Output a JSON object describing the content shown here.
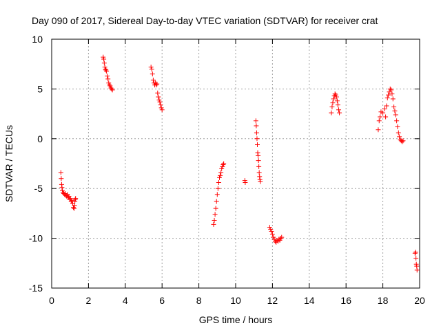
{
  "chart_data": {
    "type": "scatter",
    "title": "Day 090 of 2017, Sidereal Day-to-day VTEC variation (SDTVAR) for receiver crat",
    "xlabel": "GPS time / hours",
    "ylabel": "SDTVAR / TECUs",
    "xlim": [
      0,
      20
    ],
    "ylim": [
      -15,
      10
    ],
    "xticks": [
      0,
      2,
      4,
      6,
      8,
      10,
      12,
      14,
      16,
      18,
      20
    ],
    "yticks": [
      -15,
      -10,
      -5,
      0,
      5,
      10
    ],
    "grid": true,
    "marker": "+",
    "color": "#ff0000",
    "series": [
      {
        "name": "SDTVAR",
        "points": [
          [
            0.5,
            -3.4
          ],
          [
            0.52,
            -4.0
          ],
          [
            0.54,
            -4.6
          ],
          [
            0.56,
            -4.9
          ],
          [
            0.58,
            -5.2
          ],
          [
            0.62,
            -5.4
          ],
          [
            0.66,
            -5.5
          ],
          [
            0.7,
            -5.6
          ],
          [
            0.74,
            -5.5
          ],
          [
            0.78,
            -5.7
          ],
          [
            0.82,
            -5.8
          ],
          [
            0.86,
            -5.6
          ],
          [
            0.9,
            -5.9
          ],
          [
            0.94,
            -5.8
          ],
          [
            0.98,
            -6.1
          ],
          [
            1.02,
            -6.0
          ],
          [
            1.06,
            -6.3
          ],
          [
            1.1,
            -6.2
          ],
          [
            1.14,
            -6.5
          ],
          [
            1.18,
            -6.9
          ],
          [
            1.22,
            -7.0
          ],
          [
            1.24,
            -6.7
          ],
          [
            1.26,
            -6.3
          ],
          [
            1.28,
            -6.1
          ],
          [
            1.3,
            -6.0
          ],
          [
            2.8,
            8.2
          ],
          [
            2.83,
            8.0
          ],
          [
            2.86,
            7.6
          ],
          [
            2.89,
            7.2
          ],
          [
            2.92,
            7.0
          ],
          [
            2.95,
            6.9
          ],
          [
            2.98,
            6.8
          ],
          [
            3.02,
            6.3
          ],
          [
            3.06,
            6.0
          ],
          [
            3.1,
            5.6
          ],
          [
            3.14,
            5.4
          ],
          [
            3.18,
            5.3
          ],
          [
            3.22,
            5.1
          ],
          [
            3.26,
            5.0
          ],
          [
            3.3,
            4.9
          ],
          [
            5.4,
            7.2
          ],
          [
            5.44,
            7.0
          ],
          [
            5.48,
            6.5
          ],
          [
            5.52,
            5.9
          ],
          [
            5.56,
            5.6
          ],
          [
            5.6,
            5.4
          ],
          [
            5.64,
            5.6
          ],
          [
            5.68,
            5.4
          ],
          [
            5.72,
            5.5
          ],
          [
            5.76,
            4.6
          ],
          [
            5.8,
            4.2
          ],
          [
            5.84,
            3.9
          ],
          [
            5.88,
            3.7
          ],
          [
            5.92,
            3.4
          ],
          [
            5.96,
            3.1
          ],
          [
            6.0,
            2.9
          ],
          [
            8.8,
            -8.6
          ],
          [
            8.84,
            -8.2
          ],
          [
            8.88,
            -7.6
          ],
          [
            8.92,
            -7.0
          ],
          [
            8.96,
            -6.3
          ],
          [
            9.0,
            -5.6
          ],
          [
            9.04,
            -5.0
          ],
          [
            9.08,
            -4.4
          ],
          [
            9.12,
            -3.9
          ],
          [
            9.16,
            -3.7
          ],
          [
            9.2,
            -3.4
          ],
          [
            9.24,
            -3.0
          ],
          [
            9.28,
            -2.8
          ],
          [
            9.32,
            -2.6
          ],
          [
            9.35,
            -2.5
          ],
          [
            10.5,
            -4.2
          ],
          [
            10.52,
            -4.4
          ],
          [
            11.1,
            1.8
          ],
          [
            11.12,
            1.3
          ],
          [
            11.14,
            0.6
          ],
          [
            11.16,
            0.0
          ],
          [
            11.18,
            -0.6
          ],
          [
            11.2,
            -1.4
          ],
          [
            11.22,
            -1.7
          ],
          [
            11.24,
            -2.2
          ],
          [
            11.26,
            -2.8
          ],
          [
            11.28,
            -3.4
          ],
          [
            11.3,
            -3.8
          ],
          [
            11.32,
            -4.1
          ],
          [
            11.34,
            -4.3
          ],
          [
            11.85,
            -8.9
          ],
          [
            11.9,
            -9.1
          ],
          [
            11.95,
            -9.3
          ],
          [
            12.0,
            -9.6
          ],
          [
            12.05,
            -9.9
          ],
          [
            12.1,
            -10.1
          ],
          [
            12.15,
            -10.3
          ],
          [
            12.2,
            -10.4
          ],
          [
            12.25,
            -10.2
          ],
          [
            12.3,
            -10.3
          ],
          [
            12.35,
            -10.1
          ],
          [
            12.4,
            -10.2
          ],
          [
            12.45,
            -10.0
          ],
          [
            12.5,
            -9.9
          ],
          [
            15.2,
            2.6
          ],
          [
            15.24,
            3.2
          ],
          [
            15.28,
            3.6
          ],
          [
            15.32,
            4.0
          ],
          [
            15.36,
            4.3
          ],
          [
            15.4,
            4.5
          ],
          [
            15.44,
            4.4
          ],
          [
            15.48,
            4.2
          ],
          [
            15.52,
            3.8
          ],
          [
            15.56,
            3.4
          ],
          [
            15.6,
            2.9
          ],
          [
            15.64,
            2.6
          ],
          [
            17.75,
            0.9
          ],
          [
            17.8,
            1.8
          ],
          [
            17.85,
            2.2
          ],
          [
            17.9,
            2.7
          ],
          [
            18.0,
            2.6
          ],
          [
            18.1,
            3.0
          ],
          [
            18.15,
            2.2
          ],
          [
            18.2,
            3.3
          ],
          [
            18.25,
            4.1
          ],
          [
            18.3,
            4.4
          ],
          [
            18.35,
            4.7
          ],
          [
            18.4,
            5.0
          ],
          [
            18.45,
            4.9
          ],
          [
            18.5,
            4.5
          ],
          [
            18.55,
            4.0
          ],
          [
            18.6,
            3.2
          ],
          [
            18.65,
            2.8
          ],
          [
            18.7,
            2.4
          ],
          [
            18.75,
            1.8
          ],
          [
            18.8,
            1.2
          ],
          [
            18.85,
            0.6
          ],
          [
            18.9,
            0.2
          ],
          [
            18.95,
            -0.1
          ],
          [
            19.0,
            -0.2
          ],
          [
            19.05,
            -0.3
          ],
          [
            19.1,
            -0.2
          ],
          [
            19.75,
            -11.5
          ],
          [
            19.78,
            -11.4
          ],
          [
            19.8,
            -12.0
          ],
          [
            19.82,
            -12.6
          ],
          [
            19.84,
            -12.8
          ],
          [
            19.86,
            -13.2
          ]
        ]
      }
    ]
  }
}
